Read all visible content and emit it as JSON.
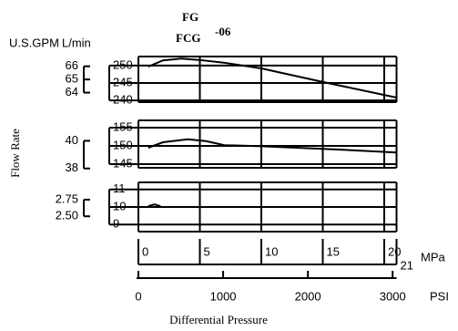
{
  "chart_data": {
    "type": "line",
    "title_lines": [
      "FG",
      "FCG",
      "-06"
    ],
    "y_label": "Flow Rate",
    "x_label": "Differential Pressure",
    "y2_unit": "U.S.GPM",
    "y_unit": "L/min",
    "x_unit": "MPa",
    "x2_unit": "PSI",
    "color": "#000000",
    "xlim": [
      0,
      21
    ],
    "xticks": [
      0,
      5,
      10,
      15,
      20,
      21
    ],
    "x2lim": [
      0,
      3046
    ],
    "x2ticks": [
      0,
      1000,
      2000,
      3000
    ],
    "panels": [
      {
        "ylim": [
          239.5,
          252.6
        ],
        "yticks": [
          250,
          245,
          240
        ],
        "y2lim": [
          63.28,
          66.74
        ],
        "y2ticks": [
          66,
          65,
          64
        ],
        "x": [
          0.8,
          2,
          3.5,
          5,
          7,
          10,
          15,
          21
        ],
        "values": [
          249.7,
          251.5,
          252,
          251.6,
          250.8,
          249.2,
          245.3,
          240.8
        ]
      },
      {
        "ylim": [
          144,
          157
        ],
        "yticks": [
          155,
          150,
          145
        ],
        "y2lim": [
          38.05,
          41.48
        ],
        "y2ticks": [
          40,
          38
        ],
        "x": [
          0.8,
          2,
          4,
          5.5,
          7,
          10,
          15,
          21
        ],
        "values": [
          149.5,
          151,
          151.8,
          151.3,
          150.2,
          149.9,
          149.2,
          148.2
        ]
      },
      {
        "ylim": [
          8.6,
          11.4
        ],
        "yticks": [
          11,
          10,
          9
        ],
        "y2lim": [
          2.27,
          3.01
        ],
        "y2ticks": [
          2.75,
          {
            "value": 2.5,
            "label": "2.50"
          }
        ],
        "x": [
          0.8,
          1.3,
          1.8
        ],
        "values": [
          10.05,
          10.15,
          10.05
        ]
      }
    ]
  }
}
